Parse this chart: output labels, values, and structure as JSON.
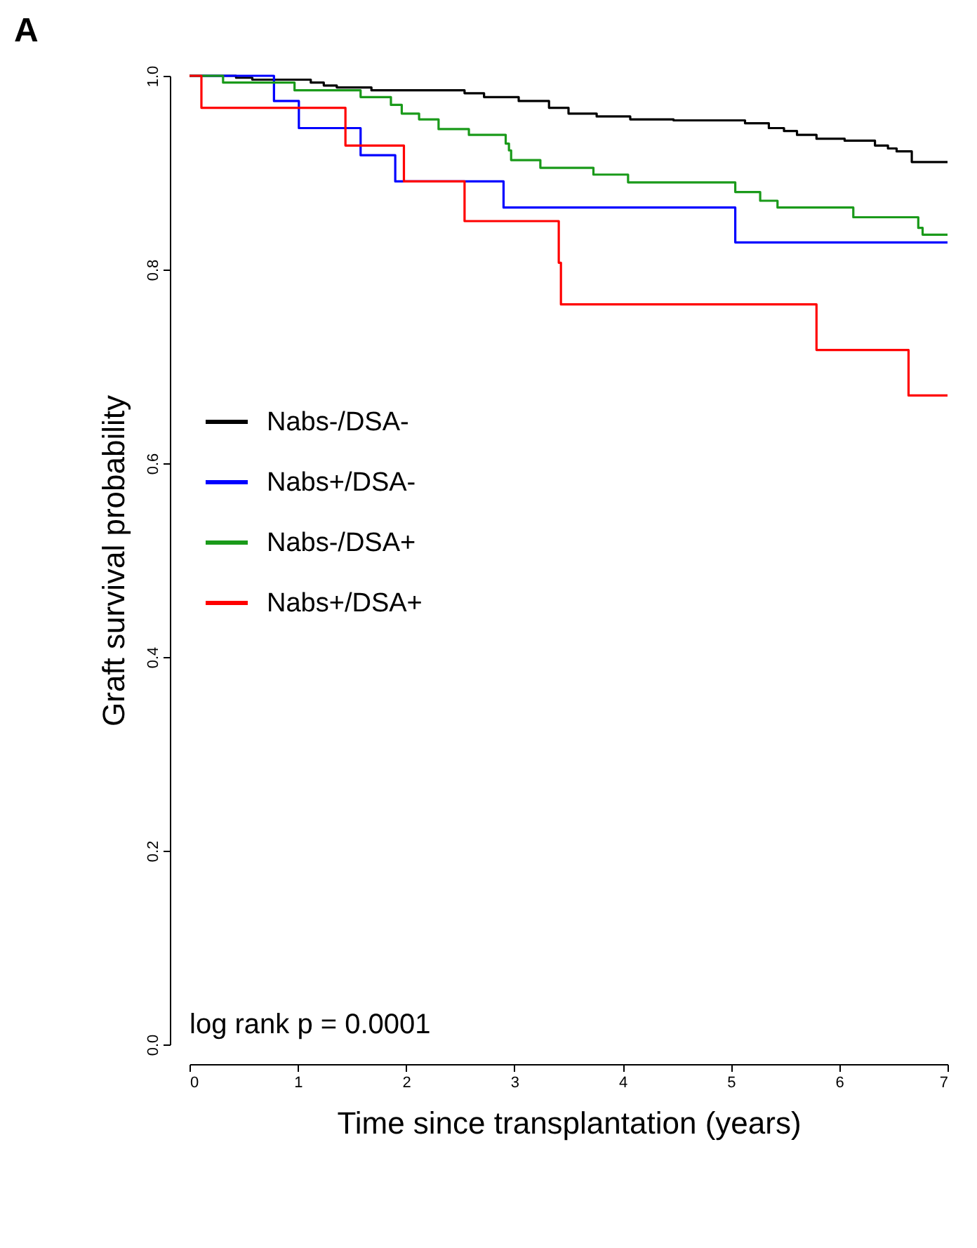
{
  "chart_data": {
    "type": "step",
    "title": "A",
    "xlabel": "Time since transplantation (years)",
    "ylabel": "Graft survival probability",
    "xlim": [
      0,
      7
    ],
    "xticks": [
      0,
      1,
      2,
      3,
      4,
      5,
      6,
      7
    ],
    "ylim": [
      0,
      1
    ],
    "yticks": [
      {
        "value": 0,
        "label": "0.0"
      },
      0.2,
      0.4,
      0.6,
      0.8,
      {
        "value": 1,
        "label": "1.0"
      }
    ],
    "grid": false,
    "legend": "left",
    "marker": "none",
    "line_style": "solid",
    "annotations": [
      "log rank p = 0.0001"
    ],
    "series": [
      {
        "name": "Nabs-/DSA-",
        "color": "#000000",
        "x": [
          0,
          0.43,
          0.58,
          1.12,
          1.24,
          1.36,
          1.68,
          2.54,
          2.72,
          3.04,
          3.32,
          3.5,
          3.76,
          4.07,
          4.47,
          5.13,
          5.35,
          5.49,
          5.61,
          5.79,
          6.05,
          6.33,
          6.45,
          6.53,
          6.67,
          7
        ],
        "values": [
          1,
          0.998,
          0.996,
          0.993,
          0.99,
          0.988,
          0.985,
          0.982,
          0.978,
          0.974,
          0.967,
          0.961,
          0.958,
          0.955,
          0.954,
          0.951,
          0.946,
          0.943,
          0.939,
          0.935,
          0.933,
          0.928,
          0.925,
          0.922,
          0.911,
          0.911
        ]
      },
      {
        "name": "Nabs+/DSA-",
        "color": "#0000ff",
        "x": [
          0,
          0.78,
          1.01,
          1.58,
          1.9,
          2.9,
          5.04,
          7
        ],
        "values": [
          1,
          0.974,
          0.946,
          0.918,
          0.891,
          0.864,
          0.828,
          0.828
        ]
      },
      {
        "name": "Nabs-/DSA+",
        "color": "#1a9a1a",
        "x": [
          0,
          0.31,
          0.97,
          1.58,
          1.86,
          1.96,
          2.12,
          2.3,
          2.58,
          2.92,
          2.95,
          2.97,
          3.24,
          3.73,
          4.05,
          5.04,
          5.27,
          5.43,
          6.13,
          6.73,
          6.77,
          7
        ],
        "values": [
          1,
          0.993,
          0.985,
          0.978,
          0.97,
          0.961,
          0.955,
          0.945,
          0.939,
          0.93,
          0.923,
          0.913,
          0.905,
          0.898,
          0.89,
          0.88,
          0.871,
          0.864,
          0.854,
          0.843,
          0.836,
          0.836
        ]
      },
      {
        "name": "Nabs+/DSA+",
        "color": "#ff0000",
        "x": [
          0,
          0.11,
          1.44,
          1.98,
          2.54,
          3.41,
          3.43,
          5.79,
          6.64,
          7
        ],
        "values": [
          1,
          0.967,
          0.928,
          0.891,
          0.85,
          0.807,
          0.764,
          0.717,
          0.67,
          0.67
        ]
      }
    ]
  }
}
